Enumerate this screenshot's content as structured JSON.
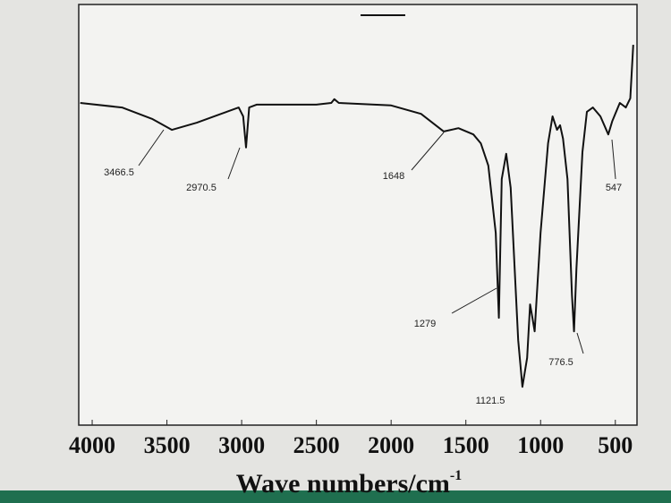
{
  "chart_data": {
    "type": "line",
    "x": [
      4080,
      3800,
      3600,
      3466.5,
      3300,
      3100,
      3020,
      2990,
      2970.5,
      2950,
      2900,
      2500,
      2400,
      2380,
      2350,
      2000,
      1800,
      1648,
      1550,
      1450,
      1400,
      1350,
      1300,
      1279,
      1260,
      1230,
      1200,
      1150,
      1121.5,
      1090,
      1070,
      1055,
      1040,
      1000,
      950,
      920,
      890,
      870,
      850,
      820,
      790,
      776.5,
      760,
      720,
      690,
      650,
      600,
      547,
      520,
      470,
      430,
      400,
      380
    ],
    "values": [
      76.6,
      75.5,
      72.8,
      70.2,
      71.9,
      74.5,
      75.5,
      73.4,
      66.0,
      75.5,
      76.2,
      76.2,
      76.6,
      77.5,
      76.6,
      76.0,
      74.0,
      69.8,
      70.6,
      69.1,
      67.0,
      61.7,
      45.7,
      25.5,
      58.5,
      64.5,
      56.4,
      20.2,
      9.1,
      16.0,
      28.7,
      25.5,
      22.3,
      45.7,
      67.0,
      73.4,
      70.2,
      71.3,
      68.1,
      58.5,
      30.9,
      22.3,
      37.2,
      64.9,
      74.5,
      75.5,
      73.4,
      69.1,
      72.3,
      76.6,
      75.5,
      77.7,
      90.4
    ],
    "color": "#111111",
    "xlim": [
      4090,
      355
    ],
    "ylim": [
      0,
      100
    ],
    "xticks": [
      4000,
      3500,
      3000,
      2500,
      2000,
      1500,
      1000,
      500
    ],
    "xlabel": "Wave numbers/cm",
    "xlabel_sup": "-1",
    "annotations": [
      3466.5,
      2970.5,
      1648,
      1279,
      1121.5,
      776.5,
      547
    ]
  }
}
